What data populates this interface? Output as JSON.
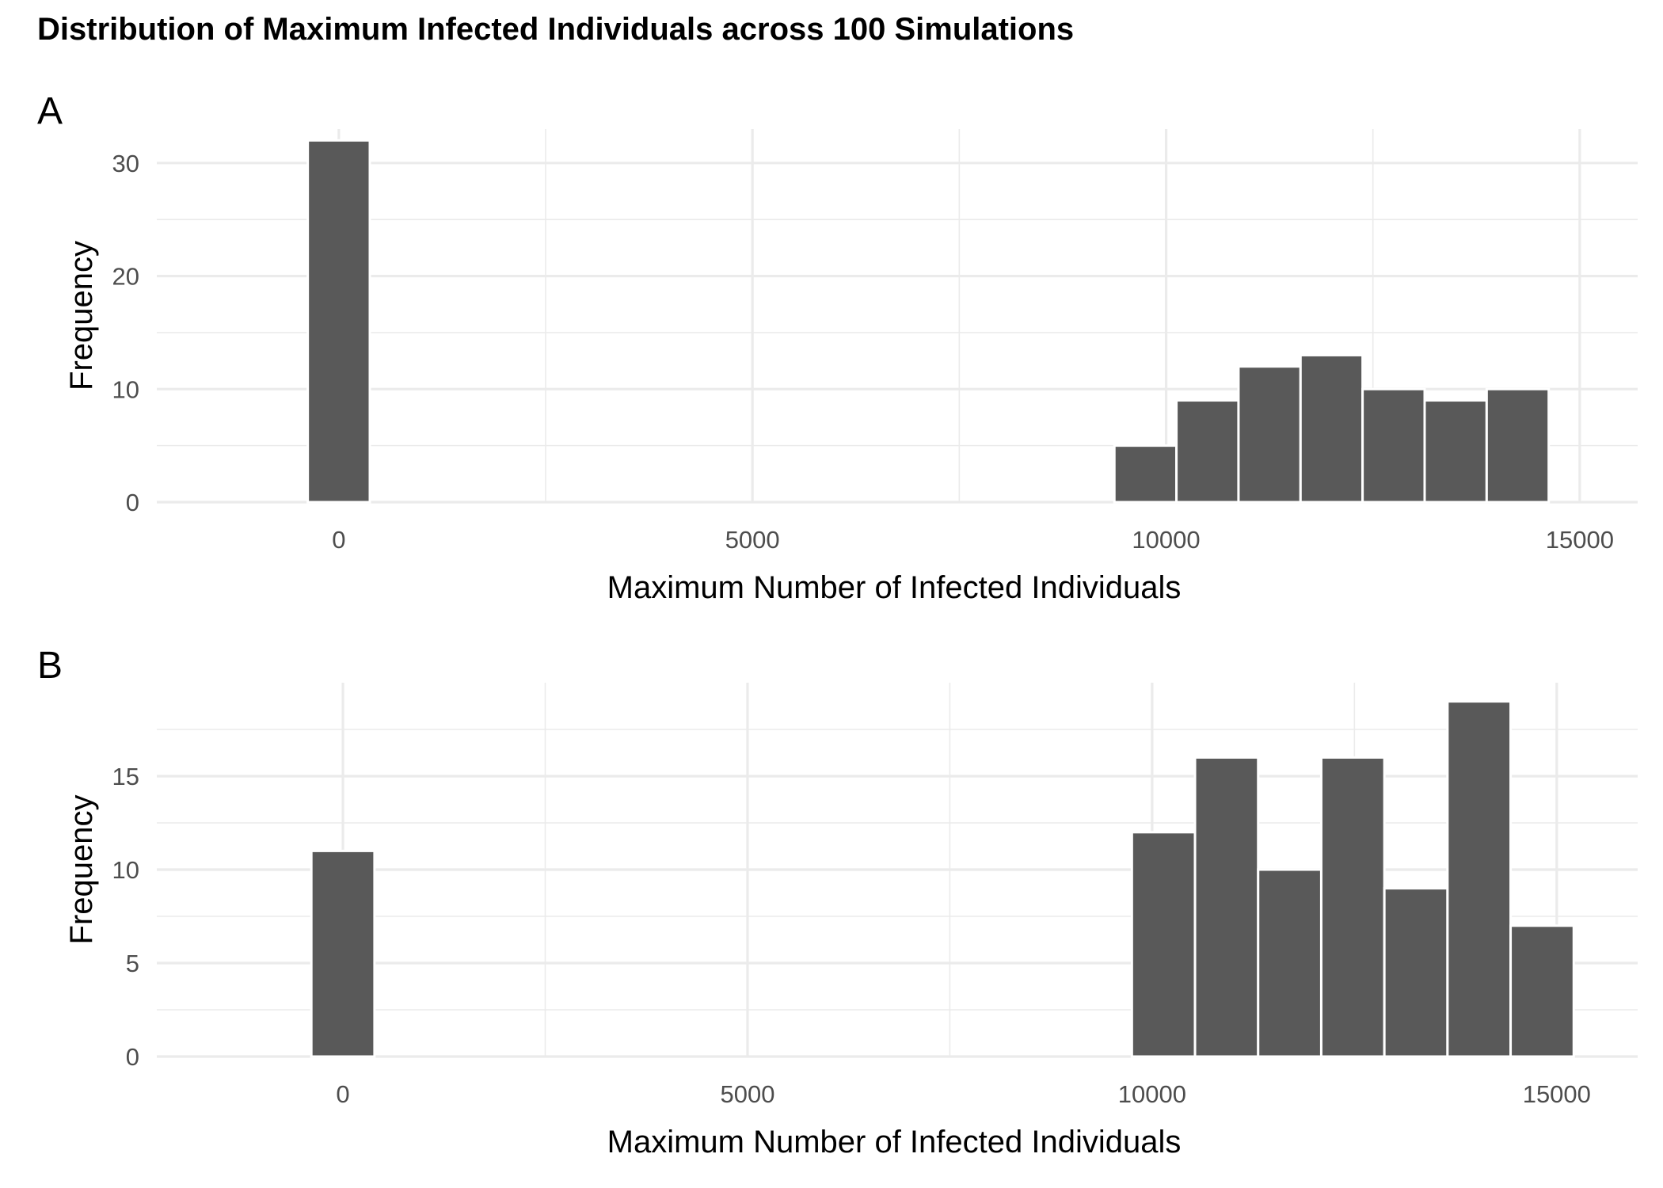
{
  "title": "Distribution of Maximum Infected Individuals across 100 Simulations",
  "colors": {
    "bar_fill": "#595959",
    "bar_outline": "#ffffff",
    "grid": "#ebebeb",
    "background": "#ffffff"
  },
  "chart_data": [
    {
      "type": "bar",
      "panel_label": "A",
      "xlabel": "Maximum Number of Infected Individuals",
      "ylabel": "Frequency",
      "xlim": [
        -2200,
        15700
      ],
      "ylim": [
        0,
        33
      ],
      "x_ticks": [
        0,
        5000,
        10000,
        15000
      ],
      "y_ticks": [
        0,
        10,
        20,
        30
      ],
      "grid": true,
      "bins": [
        {
          "start": -375,
          "end": 375,
          "count": 32
        },
        {
          "start": 9375,
          "end": 10125,
          "count": 5
        },
        {
          "start": 10125,
          "end": 10875,
          "count": 9
        },
        {
          "start": 10875,
          "end": 11625,
          "count": 12
        },
        {
          "start": 11625,
          "end": 12375,
          "count": 13
        },
        {
          "start": 12375,
          "end": 13125,
          "count": 10
        },
        {
          "start": 13125,
          "end": 13875,
          "count": 9
        },
        {
          "start": 13875,
          "end": 14625,
          "count": 10
        }
      ]
    },
    {
      "type": "bar",
      "panel_label": "B",
      "xlabel": "Maximum Number of Infected Individuals",
      "ylabel": "Frequency",
      "xlim": [
        -2300,
        16000
      ],
      "ylim": [
        0,
        20
      ],
      "x_ticks": [
        0,
        5000,
        10000,
        15000
      ],
      "y_ticks": [
        0,
        5,
        10,
        15
      ],
      "grid": true,
      "bins": [
        {
          "start": -390,
          "end": 390,
          "count": 11
        },
        {
          "start": 9750,
          "end": 10530,
          "count": 12
        },
        {
          "start": 10530,
          "end": 11310,
          "count": 16
        },
        {
          "start": 11310,
          "end": 12090,
          "count": 10
        },
        {
          "start": 12090,
          "end": 12870,
          "count": 16
        },
        {
          "start": 12870,
          "end": 13650,
          "count": 9
        },
        {
          "start": 13650,
          "end": 14430,
          "count": 19
        },
        {
          "start": 14430,
          "end": 15210,
          "count": 7
        }
      ]
    }
  ]
}
